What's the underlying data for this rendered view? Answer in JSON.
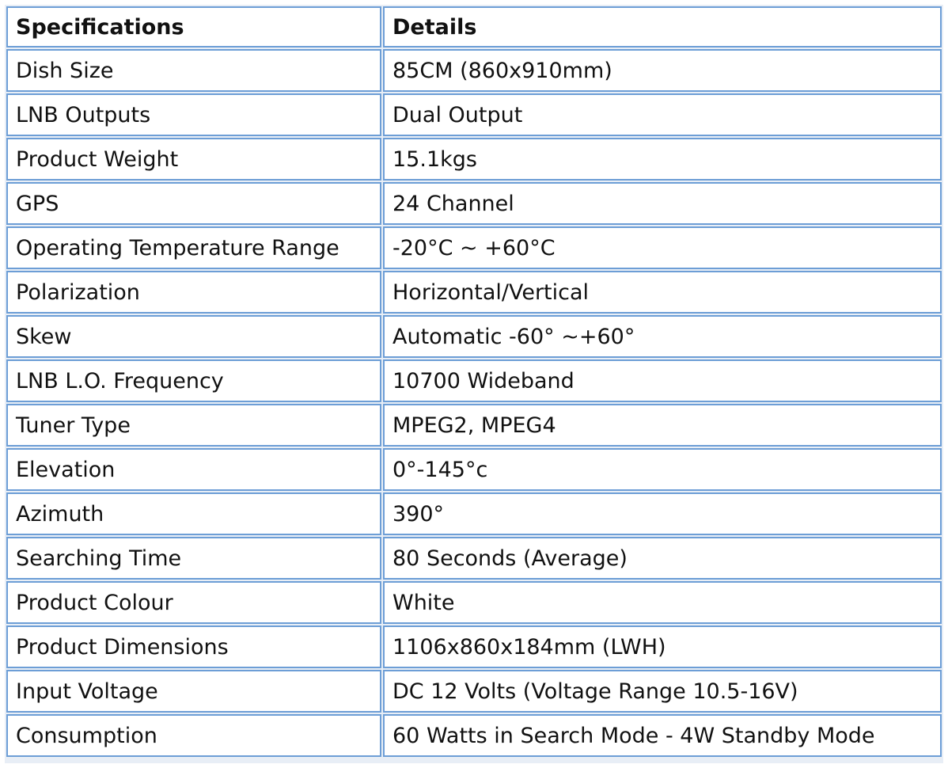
{
  "table": {
    "header": [
      "Specifications",
      "Details"
    ],
    "rows": [
      [
        "Dish Size",
        "85CM (860x910mm)"
      ],
      [
        "LNB Outputs",
        "Dual Output"
      ],
      [
        "Product Weight",
        "15.1kgs"
      ],
      [
        "GPS",
        "24 Channel"
      ],
      [
        "Operating Temperature Range",
        "-20°C ~ +60°C"
      ],
      [
        "Polarization",
        "Horizontal/Vertical"
      ],
      [
        "Skew",
        "Automatic -60° ~+60°"
      ],
      [
        "LNB L.O. Frequency",
        "10700 Wideband"
      ],
      [
        "Tuner Type",
        "MPEG2, MPEG4"
      ],
      [
        "Elevation",
        "0°-145°c"
      ],
      [
        "Azimuth",
        "390°"
      ],
      [
        "Searching Time",
        "80 Seconds (Average)"
      ],
      [
        "Product Colour",
        "White"
      ],
      [
        "Product Dimensions",
        "1106x860x184mm (LWH)"
      ],
      [
        "Input Voltage",
        "DC 12 Volts (Voltage Range 10.5-16V)"
      ],
      [
        "Consumption",
        "60 Watts in Search Mode - 4W Standby Mode"
      ]
    ]
  }
}
